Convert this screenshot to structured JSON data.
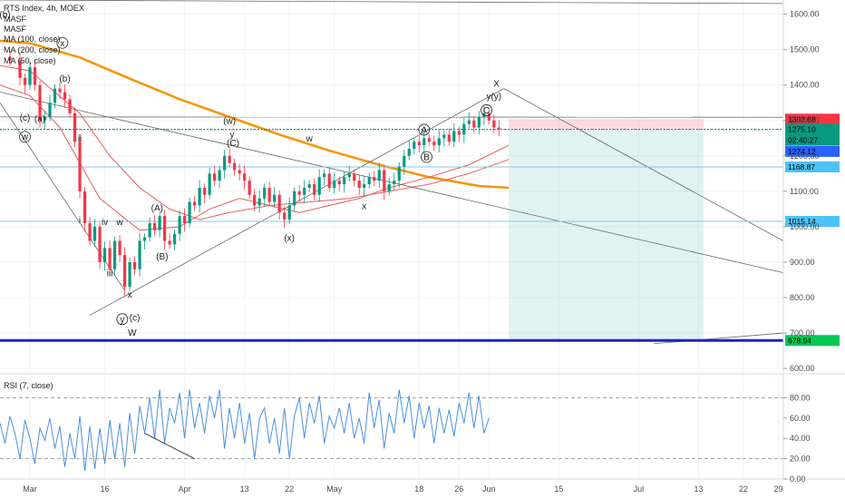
{
  "chart_data": {
    "type": "candlestick",
    "title": "RTS Index, 4h, MOEX",
    "indicators": [
      "MASF",
      "MASF",
      "MA (100, close)",
      "MA (200, close)",
      "MA (50, close)"
    ],
    "ylim": [
      590,
      1640
    ],
    "y_ticks": [
      "1600.00",
      "1500.00",
      "1400.00",
      "1300.00",
      "1200.00",
      "1100.00",
      "1000.00",
      "900.00",
      "800.00",
      "700.00",
      "600.00"
    ],
    "x_ticks": [
      {
        "label": "Mar",
        "day": 0
      },
      {
        "label": "16",
        "day": 15
      },
      {
        "label": "Apr",
        "day": 31
      },
      {
        "label": "13",
        "day": 43
      },
      {
        "label": "22",
        "day": 52
      },
      {
        "label": "May",
        "day": 61
      },
      {
        "label": "18",
        "day": 78
      },
      {
        "label": "26",
        "day": 86
      },
      {
        "label": "Jun",
        "day": 92
      },
      {
        "label": "15",
        "day": 106
      },
      {
        "label": "Jul",
        "day": 122
      },
      {
        "label": "13",
        "day": 134
      },
      {
        "label": "22",
        "day": 143
      },
      {
        "label": "29",
        "day": 150
      }
    ],
    "price_path": [
      [
        -6,
        1480
      ],
      [
        -4,
        1470
      ],
      [
        -2,
        1420
      ],
      [
        -1,
        1400
      ],
      [
        0,
        1450
      ],
      [
        1,
        1400
      ],
      [
        2,
        1300
      ],
      [
        3,
        1310
      ],
      [
        4,
        1350
      ],
      [
        5,
        1390
      ],
      [
        6,
        1380
      ],
      [
        7,
        1360
      ],
      [
        8,
        1320
      ],
      [
        9,
        1240
      ],
      [
        10,
        1100
      ],
      [
        11,
        1010
      ],
      [
        12,
        960
      ],
      [
        13,
        1000
      ],
      [
        14,
        900
      ],
      [
        15,
        940
      ],
      [
        16,
        880
      ],
      [
        17,
        960
      ],
      [
        18,
        920
      ],
      [
        19,
        830
      ],
      [
        20,
        900
      ],
      [
        21,
        880
      ],
      [
        22,
        960
      ],
      [
        23,
        970
      ],
      [
        24,
        1010
      ],
      [
        25,
        990
      ],
      [
        26,
        1030
      ],
      [
        27,
        960
      ],
      [
        28,
        950
      ],
      [
        29,
        980
      ],
      [
        30,
        1030
      ],
      [
        31,
        1010
      ],
      [
        32,
        1070
      ],
      [
        33,
        1060
      ],
      [
        34,
        1110
      ],
      [
        35,
        1090
      ],
      [
        36,
        1150
      ],
      [
        37,
        1130
      ],
      [
        38,
        1160
      ],
      [
        39,
        1200
      ],
      [
        40,
        1180
      ],
      [
        41,
        1160
      ],
      [
        42,
        1150
      ],
      [
        43,
        1130
      ],
      [
        44,
        1090
      ],
      [
        45,
        1060
      ],
      [
        46,
        1080
      ],
      [
        47,
        1110
      ],
      [
        48,
        1070
      ],
      [
        49,
        1090
      ],
      [
        50,
        1040
      ],
      [
        51,
        1020
      ],
      [
        52,
        1060
      ],
      [
        53,
        1100
      ],
      [
        54,
        1090
      ],
      [
        55,
        1110
      ],
      [
        56,
        1120
      ],
      [
        57,
        1090
      ],
      [
        58,
        1140
      ],
      [
        59,
        1150
      ],
      [
        60,
        1110
      ],
      [
        61,
        1130
      ],
      [
        62,
        1120
      ],
      [
        63,
        1140
      ],
      [
        64,
        1150
      ],
      [
        65,
        1130
      ],
      [
        66,
        1110
      ],
      [
        67,
        1120
      ],
      [
        68,
        1140
      ],
      [
        69,
        1130
      ],
      [
        70,
        1160
      ],
      [
        71,
        1100
      ],
      [
        72,
        1120
      ],
      [
        73,
        1130
      ],
      [
        74,
        1170
      ],
      [
        75,
        1200
      ],
      [
        76,
        1220
      ],
      [
        77,
        1240
      ],
      [
        78,
        1230
      ],
      [
        79,
        1250
      ],
      [
        80,
        1240
      ],
      [
        81,
        1230
      ],
      [
        82,
        1250
      ],
      [
        83,
        1260
      ],
      [
        84,
        1240
      ],
      [
        85,
        1270
      ],
      [
        86,
        1260
      ],
      [
        87,
        1290
      ],
      [
        88,
        1300
      ],
      [
        89,
        1280
      ],
      [
        90,
        1310
      ],
      [
        91,
        1320
      ],
      [
        92,
        1300
      ],
      [
        93,
        1280
      ],
      [
        94,
        1275
      ]
    ],
    "ma_200_orange": [
      [
        -6,
        1525
      ],
      [
        0,
        1518
      ],
      [
        10,
        1478
      ],
      [
        20,
        1418
      ],
      [
        30,
        1360
      ],
      [
        40,
        1310
      ],
      [
        50,
        1260
      ],
      [
        60,
        1215
      ],
      [
        70,
        1175
      ],
      [
        80,
        1140
      ],
      [
        90,
        1115
      ],
      [
        96,
        1110
      ]
    ],
    "ma_100_red": [
      [
        -6,
        1455
      ],
      [
        0,
        1440
      ],
      [
        10,
        1320
      ],
      [
        16,
        1200
      ],
      [
        22,
        1110
      ],
      [
        28,
        1050
      ],
      [
        34,
        1020
      ],
      [
        40,
        1040
      ],
      [
        48,
        1060
      ],
      [
        56,
        1070
      ],
      [
        64,
        1080
      ],
      [
        72,
        1100
      ],
      [
        80,
        1120
      ],
      [
        88,
        1150
      ],
      [
        96,
        1190
      ]
    ],
    "ma_50_red": [
      [
        -6,
        1400
      ],
      [
        0,
        1370
      ],
      [
        6,
        1280
      ],
      [
        14,
        1080
      ],
      [
        22,
        990
      ],
      [
        30,
        1000
      ],
      [
        36,
        1050
      ],
      [
        42,
        1080
      ],
      [
        48,
        1060
      ],
      [
        54,
        1040
      ],
      [
        60,
        1060
      ],
      [
        66,
        1080
      ],
      [
        72,
        1110
      ],
      [
        80,
        1140
      ],
      [
        88,
        1175
      ],
      [
        96,
        1230
      ]
    ],
    "horizontal_levels": [
      {
        "value": 1303.68,
        "label": "1303.68",
        "color": "#f23645"
      },
      {
        "value": 1275.1,
        "label": "1275.10",
        "color": "#089981"
      },
      {
        "value": 1274.12,
        "label": "1274.12",
        "color": "#2962ff"
      },
      {
        "value": 1168.87,
        "label": "1168.87",
        "color": "#4fc3f7"
      },
      {
        "value": 1015.14,
        "label": "1015.14",
        "color": "#4fc3f7"
      },
      {
        "value": 678.94,
        "label": "678.94",
        "color": "#00c853"
      }
    ],
    "countdown_label": "02:40:27",
    "trade_zone": {
      "start_day": 96,
      "end_day": 135,
      "stop": 1303.68,
      "entry": 1275.1,
      "target": 678.94
    },
    "wave_labels": [
      {
        "text": "(b)",
        "day": -5,
        "price": 1590
      },
      {
        "text": "x",
        "day": 6.5,
        "price": 1510,
        "circle": true
      },
      {
        "text": "(b)",
        "day": 7,
        "price": 1410
      },
      {
        "text": "(c)",
        "day": -1,
        "price": 1300
      },
      {
        "text": "(a)",
        "day": 2,
        "price": 1295
      },
      {
        "text": "w",
        "day": -1,
        "price": 1245,
        "circle": true
      },
      {
        "text": "ii",
        "day": 10,
        "price": 1240
      },
      {
        "text": "i",
        "day": 10,
        "price": 1010
      },
      {
        "text": "iv",
        "day": 15,
        "price": 1005
      },
      {
        "text": "w",
        "day": 18,
        "price": 1005
      },
      {
        "text": "iii",
        "day": 16,
        "price": 860
      },
      {
        "text": "x",
        "day": 20,
        "price": 800
      },
      {
        "text": "y",
        "day": 18.5,
        "price": 730,
        "circle": true
      },
      {
        "text": "(c)",
        "day": 21,
        "price": 735
      },
      {
        "text": "W",
        "day": 20.5,
        "price": 693
      },
      {
        "text": "(A)",
        "day": 25.5,
        "price": 1045
      },
      {
        "text": "(B)",
        "day": 26.5,
        "price": 908
      },
      {
        "text": "(w)",
        "day": 40,
        "price": 1290
      },
      {
        "text": "y",
        "day": 40.5,
        "price": 1252
      },
      {
        "text": "(C)",
        "day": 40.7,
        "price": 1228
      },
      {
        "text": "w",
        "day": 56,
        "price": 1240
      },
      {
        "text": "(x)",
        "day": 52,
        "price": 960
      },
      {
        "text": "x",
        "day": 67,
        "price": 1050
      },
      {
        "text": "A",
        "day": 79,
        "price": 1265,
        "circle": true
      },
      {
        "text": "B",
        "day": 79.5,
        "price": 1188,
        "circle": true
      },
      {
        "text": "C",
        "day": 91.5,
        "price": 1320,
        "circle": true
      },
      {
        "text": "y(y)",
        "day": 93,
        "price": 1360
      },
      {
        "text": "X",
        "day": 93.5,
        "price": 1395
      }
    ],
    "rsi": {
      "label": "RSI (7, close)",
      "ylim": [
        0,
        100
      ],
      "y_ticks": [
        "80.00",
        "60.00",
        "40.00",
        "20.00",
        "0.00"
      ],
      "levels": [
        80,
        20
      ],
      "values": [
        [
          -6,
          55
        ],
        [
          -5,
          35
        ],
        [
          -4,
          62
        ],
        [
          -3,
          45
        ],
        [
          -2,
          20
        ],
        [
          -1,
          58
        ],
        [
          0,
          40
        ],
        [
          1,
          15
        ],
        [
          2,
          50
        ],
        [
          3,
          38
        ],
        [
          4,
          60
        ],
        [
          5,
          30
        ],
        [
          6,
          52
        ],
        [
          7,
          12
        ],
        [
          8,
          45
        ],
        [
          9,
          20
        ],
        [
          10,
          62
        ],
        [
          11,
          8
        ],
        [
          12,
          52
        ],
        [
          13,
          10
        ],
        [
          14,
          50
        ],
        [
          15,
          15
        ],
        [
          16,
          58
        ],
        [
          17,
          20
        ],
        [
          18,
          55
        ],
        [
          19,
          12
        ],
        [
          20,
          65
        ],
        [
          21,
          25
        ],
        [
          22,
          72
        ],
        [
          23,
          45
        ],
        [
          24,
          80
        ],
        [
          25,
          40
        ],
        [
          26,
          88
        ],
        [
          27,
          35
        ],
        [
          28,
          70
        ],
        [
          29,
          55
        ],
        [
          30,
          85
        ],
        [
          31,
          40
        ],
        [
          32,
          88
        ],
        [
          33,
          50
        ],
        [
          34,
          75
        ],
        [
          35,
          45
        ],
        [
          36,
          82
        ],
        [
          37,
          60
        ],
        [
          38,
          88
        ],
        [
          39,
          30
        ],
        [
          40,
          70
        ],
        [
          41,
          40
        ],
        [
          42,
          75
        ],
        [
          43,
          35
        ],
        [
          44,
          65
        ],
        [
          45,
          20
        ],
        [
          46,
          60
        ],
        [
          47,
          70
        ],
        [
          48,
          35
        ],
        [
          49,
          60
        ],
        [
          50,
          25
        ],
        [
          51,
          70
        ],
        [
          52,
          20
        ],
        [
          53,
          62
        ],
        [
          54,
          80
        ],
        [
          55,
          40
        ],
        [
          56,
          75
        ],
        [
          57,
          55
        ],
        [
          58,
          82
        ],
        [
          59,
          35
        ],
        [
          60,
          62
        ],
        [
          61,
          50
        ],
        [
          62,
          70
        ],
        [
          63,
          45
        ],
        [
          64,
          75
        ],
        [
          65,
          40
        ],
        [
          66,
          60
        ],
        [
          67,
          35
        ],
        [
          68,
          85
        ],
        [
          69,
          50
        ],
        [
          70,
          78
        ],
        [
          71,
          30
        ],
        [
          72,
          65
        ],
        [
          73,
          45
        ],
        [
          74,
          88
        ],
        [
          75,
          55
        ],
        [
          76,
          82
        ],
        [
          77,
          40
        ],
        [
          78,
          75
        ],
        [
          79,
          50
        ],
        [
          80,
          72
        ],
        [
          81,
          35
        ],
        [
          82,
          70
        ],
        [
          83,
          45
        ],
        [
          84,
          68
        ],
        [
          85,
          42
        ],
        [
          86,
          75
        ],
        [
          87,
          55
        ],
        [
          88,
          85
        ],
        [
          89,
          50
        ],
        [
          90,
          82
        ],
        [
          91,
          45
        ],
        [
          92,
          60
        ]
      ],
      "divergence_line": [
        [
          23,
          45
        ],
        [
          33,
          20
        ]
      ]
    },
    "trendlines": [
      [
        [
          -6,
          1640
        ],
        [
          151,
          1630
        ]
      ],
      [
        [
          -6,
          1380
        ],
        [
          151,
          870
        ]
      ],
      [
        [
          -6,
          1310
        ],
        [
          151,
          1309
        ]
      ],
      [
        [
          12,
          750
        ],
        [
          95,
          1390
        ]
      ],
      [
        [
          -6,
          1350
        ],
        [
          19,
          820
        ]
      ],
      [
        [
          95,
          1390
        ],
        [
          151,
          960
        ]
      ],
      [
        [
          125,
          670
        ],
        [
          151,
          700
        ]
      ]
    ]
  }
}
